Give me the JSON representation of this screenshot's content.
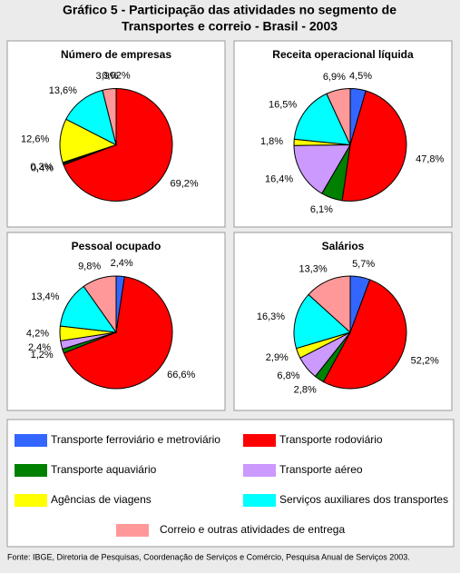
{
  "chart_data": {
    "type": "pie",
    "title": "Gráfico 5 - Participação das atividades no segmento de",
    "subtitle": "Transportes e correio - Brasil - 2003",
    "categories": [
      "Transporte ferroviário e metroviário",
      "Transporte rodoviário",
      "Transporte aquaviário",
      "Transporte aéreo",
      "Agências de viagens",
      "Serviços auxiliares dos transportes",
      "Correio e outras atividades de entrega"
    ],
    "colors": [
      "#3366ff",
      "#ff0000",
      "#008000",
      "#cc99ff",
      "#ffff00",
      "#00ffff",
      "#ff9999"
    ],
    "series": [
      {
        "name": "Número de empresas",
        "values": [
          0.02,
          69.2,
          0.4,
          0.3,
          12.6,
          13.6,
          3.9
        ],
        "value_labels": [
          "0,02%",
          "69,2%",
          "0,4%",
          "0,3%",
          "12,6%",
          "13,6%",
          "3,9%"
        ]
      },
      {
        "name": "Receita operacional líquida",
        "values": [
          4.5,
          47.8,
          6.1,
          16.4,
          1.8,
          16.5,
          6.9
        ],
        "value_labels": [
          "4,5%",
          "47,8%",
          "6,1%",
          "16,4%",
          "1,8%",
          "16,5%",
          "6,9%"
        ]
      },
      {
        "name": "Pessoal ocupado",
        "values": [
          2.4,
          66.6,
          1.2,
          2.4,
          4.2,
          13.4,
          9.8
        ],
        "value_labels": [
          "2,4%",
          "66,6%",
          "1,2%",
          "2,4%",
          "4,2%",
          "13,4%",
          "9,8%"
        ]
      },
      {
        "name": "Salários",
        "values": [
          5.7,
          52.2,
          2.8,
          6.8,
          2.9,
          16.3,
          13.3
        ],
        "value_labels": [
          "5,7%",
          "52,2%",
          "2,8%",
          "6,8%",
          "2,9%",
          "16,3%",
          "13,3%"
        ]
      }
    ],
    "source": "Fonte: IBGE, Diretoria de Pesquisas, Coordenação de Serviços e Comércio, Pesquisa Anual de Serviços 2003."
  }
}
